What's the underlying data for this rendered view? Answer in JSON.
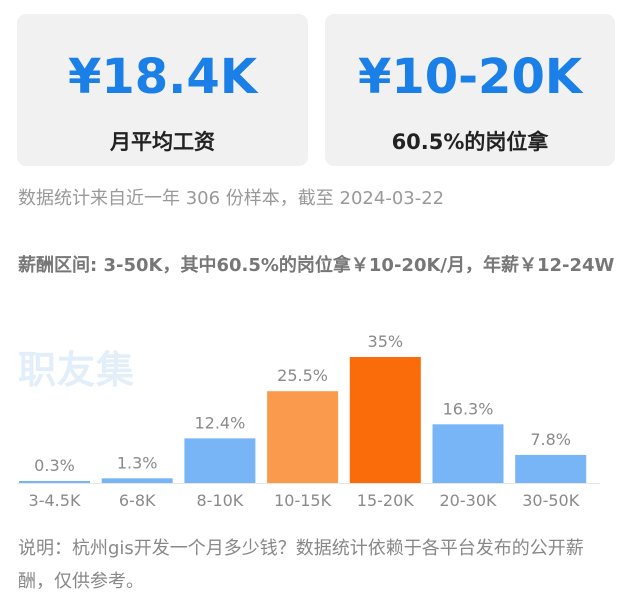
{
  "cards": [
    {
      "value": "¥18.4K",
      "caption": "月平均工资"
    },
    {
      "value": "¥10-20K",
      "caption": "60.5%的岗位拿"
    }
  ],
  "source_text": "数据统计来自近一年 306 份样本，截至 2024-03-22",
  "range_text": "薪酬区间: 3-50K，其中60.5%的岗位拿￥10-20K/月，年薪￥12-24W",
  "watermark": "职友集",
  "note_text": "说明：杭州gis开发一个月多少钱？数据统计依赖于各平台发布的公开薪酬，仅供参考。",
  "colors": {
    "accent": "#1a7fe6",
    "bar_default": "#77b5f7",
    "bar_medium": "#f99a4c",
    "bar_max": "#fa6b0a"
  },
  "chart_data": {
    "type": "bar",
    "categories": [
      "3-4.5K",
      "6-8K",
      "8-10K",
      "10-15K",
      "15-20K",
      "20-30K",
      "30-50K"
    ],
    "values": [
      0.3,
      1.3,
      12.4,
      25.5,
      35,
      16.3,
      7.8
    ],
    "data_labels": [
      "0.3%",
      "1.3%",
      "12.4%",
      "25.5%",
      "35%",
      "16.3%",
      "7.8%"
    ],
    "bar_colors": [
      "#77b5f7",
      "#77b5f7",
      "#77b5f7",
      "#f99a4c",
      "#fa6b0a",
      "#77b5f7",
      "#77b5f7"
    ],
    "ylim": [
      0,
      35
    ],
    "grid": false
  }
}
